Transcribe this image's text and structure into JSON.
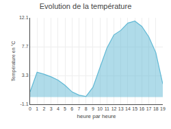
{
  "chart_data": {
    "type": "area",
    "title": "Evolution de la température",
    "x_label": "heure par heure",
    "y_label": "Température en °C",
    "x": [
      0,
      1,
      2,
      3,
      4,
      5,
      6,
      7,
      8,
      9,
      10,
      11,
      12,
      13,
      14,
      15,
      16,
      17,
      18,
      19
    ],
    "values": [
      0.8,
      3.8,
      3.5,
      3.1,
      2.6,
      1.8,
      0.8,
      0.3,
      0.1,
      1.5,
      4.5,
      7.5,
      9.5,
      10.2,
      11.3,
      11.6,
      10.8,
      9.2,
      6.8,
      2.0
    ],
    "color": "#60b8d4",
    "xlim": [
      0,
      19
    ],
    "xticks": [
      0,
      1,
      2,
      3,
      4,
      5,
      6,
      7,
      8,
      9,
      10,
      11,
      12,
      13,
      14,
      15,
      16,
      17,
      18,
      19
    ],
    "ylim": [
      -1.1,
      12.1
    ],
    "yticks": [
      -1.1,
      3.3,
      7.7,
      12.1
    ],
    "grid": true
  }
}
